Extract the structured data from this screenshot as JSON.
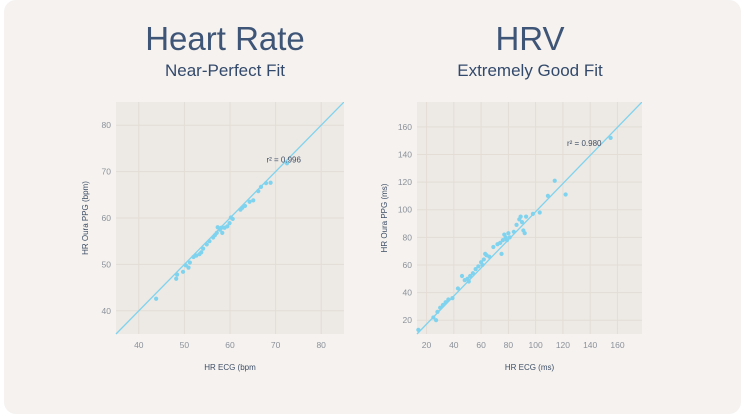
{
  "panels": [
    {
      "title": "Heart Rate",
      "subtitle": "Near-Perfect Fit"
    },
    {
      "title": "HRV",
      "subtitle": "Extremely Good Fit"
    }
  ],
  "colors": {
    "point": "#7fd3ee",
    "line": "#7fd3ee",
    "plot_bg": "#ede9e4",
    "grid": "#e3ddd6",
    "title": "#3e5577"
  },
  "chart_data": [
    {
      "type": "scatter",
      "xlabel": "HR ECG (bpm",
      "ylabel": "HR Oura PPG (bpm)",
      "annotation": "r² = 0.996",
      "xlim": [
        35,
        85
      ],
      "ylim": [
        35,
        85
      ],
      "xticks": [
        40,
        50,
        60,
        70,
        80
      ],
      "yticks": [
        40,
        50,
        60,
        70,
        80
      ],
      "grid": true,
      "fit_line": [
        [
          35,
          35
        ],
        [
          85,
          85
        ]
      ],
      "points": [
        [
          43.8,
          42.6
        ],
        [
          48.2,
          46.9
        ],
        [
          48.4,
          47.8
        ],
        [
          49.7,
          48.4
        ],
        [
          50.3,
          49.8
        ],
        [
          50.9,
          49.3
        ],
        [
          51.2,
          50.4
        ],
        [
          52.0,
          51.6
        ],
        [
          52.6,
          51.9
        ],
        [
          53.3,
          52.2
        ],
        [
          53.7,
          52.6
        ],
        [
          54.1,
          53.4
        ],
        [
          54.9,
          54.3
        ],
        [
          55.5,
          55.0
        ],
        [
          56.3,
          55.8
        ],
        [
          56.7,
          56.3
        ],
        [
          57.1,
          56.8
        ],
        [
          57.3,
          58.0
        ],
        [
          57.8,
          57.5
        ],
        [
          58.1,
          57.9
        ],
        [
          58.3,
          56.8
        ],
        [
          58.8,
          57.9
        ],
        [
          59.4,
          58.2
        ],
        [
          59.9,
          58.9
        ],
        [
          60.2,
          60.1
        ],
        [
          60.6,
          59.8
        ],
        [
          62.3,
          61.8
        ],
        [
          62.7,
          62.2
        ],
        [
          63.3,
          62.6
        ],
        [
          64.3,
          63.5
        ],
        [
          65.1,
          63.8
        ],
        [
          66.2,
          65.8
        ],
        [
          66.8,
          66.7
        ],
        [
          67.9,
          67.5
        ],
        [
          68.9,
          67.6
        ],
        [
          72.5,
          71.8
        ]
      ]
    },
    {
      "type": "scatter",
      "xlabel": "HR ECG (ms)",
      "ylabel": "HR Oura PPG (ms)",
      "annotation": "r² = 0.980",
      "xlim": [
        13,
        178
      ],
      "ylim": [
        10,
        178
      ],
      "xticks": [
        20,
        40,
        60,
        80,
        100,
        120,
        140,
        160
      ],
      "yticks": [
        20,
        40,
        60,
        80,
        100,
        120,
        140,
        160
      ],
      "grid": true,
      "fit_line": [
        [
          13,
          10
        ],
        [
          178,
          178
        ]
      ],
      "points": [
        [
          14,
          13
        ],
        [
          25,
          22
        ],
        [
          27,
          20
        ],
        [
          28,
          26
        ],
        [
          30,
          29
        ],
        [
          32,
          31
        ],
        [
          34,
          33
        ],
        [
          36,
          35
        ],
        [
          39,
          36
        ],
        [
          43,
          43
        ],
        [
          46,
          52
        ],
        [
          48,
          49
        ],
        [
          50,
          50
        ],
        [
          51,
          48
        ],
        [
          52,
          52
        ],
        [
          54,
          54
        ],
        [
          56,
          57
        ],
        [
          58,
          59
        ],
        [
          60,
          62
        ],
        [
          61,
          60
        ],
        [
          62,
          64
        ],
        [
          63,
          68
        ],
        [
          64,
          67
        ],
        [
          66,
          66
        ],
        [
          69,
          73
        ],
        [
          72,
          75
        ],
        [
          74,
          76
        ],
        [
          75,
          68
        ],
        [
          76,
          78
        ],
        [
          77,
          82
        ],
        [
          78,
          80
        ],
        [
          79,
          78
        ],
        [
          80,
          83
        ],
        [
          81,
          80
        ],
        [
          84,
          84
        ],
        [
          86,
          89
        ],
        [
          88,
          93
        ],
        [
          89,
          95
        ],
        [
          90,
          91
        ],
        [
          91,
          85
        ],
        [
          92,
          83
        ],
        [
          93,
          95
        ],
        [
          98,
          97
        ],
        [
          103,
          98
        ],
        [
          109,
          110
        ],
        [
          114,
          121
        ],
        [
          122,
          111
        ],
        [
          155,
          152
        ]
      ]
    }
  ]
}
